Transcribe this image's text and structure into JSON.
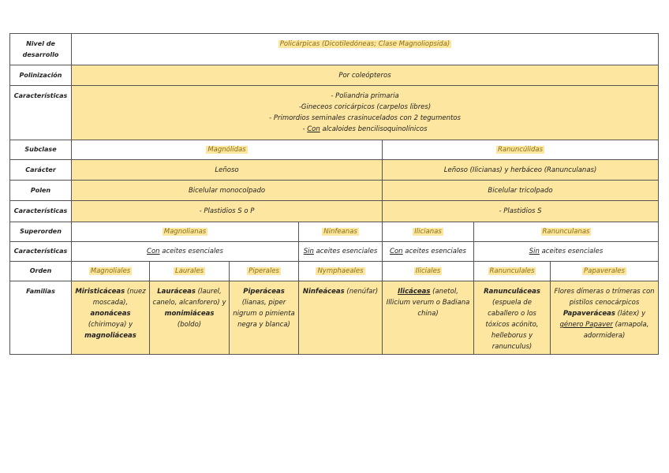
{
  "rows": {
    "nivel": {
      "label": "Nivel de desarrollo",
      "value": "Policárpicas (Dicotiledóneas; Clase Magnoliopsida)"
    },
    "polinizacion": {
      "label": "Polinización",
      "value": "Por coleópteros"
    },
    "caracteristicas1": {
      "label": "Características",
      "lines": [
        "- Poliandria primaria",
        "-Gineceos coricárpicos (carpelos libres)",
        "- Primordios seminales crasinucelados con 2 tegumentos"
      ],
      "last_prefix": "- ",
      "last_underlined": "Con",
      "last_rest": " alcaloides bencilisoquinolínicos"
    },
    "subclase": {
      "label": "Subclase",
      "values": [
        "Magnólidas",
        "Ranuncúlidas"
      ]
    },
    "caracter": {
      "label": "Carácter",
      "values": [
        "Leñoso",
        "Leñoso (Ilicianas) y herbáceo (Ranunculanas)"
      ]
    },
    "polen": {
      "label": "Polen",
      "values": [
        "Bicelular monocolpado",
        "Bicelular tricolpado"
      ]
    },
    "caracteristicas2": {
      "label": "Características",
      "values": [
        "- Plastidios S o P",
        "- Plastidios S"
      ]
    },
    "superorden": {
      "label": "Superorden",
      "values": [
        "Magnolianas",
        "Ninfeanas",
        "Ilicianas",
        "Ranunculanas"
      ]
    },
    "caracteristicas3": {
      "label": "Características",
      "values": [
        {
          "u": "Con",
          "rest": " aceites esenciales"
        },
        {
          "u": "Sin",
          "rest": " aceites esenciales"
        },
        {
          "u": "Con",
          "rest": " aceites esenciales"
        },
        {
          "u": "Sin",
          "rest": " aceites esenciales"
        }
      ]
    },
    "orden": {
      "label": "Orden",
      "values": [
        "Magnoliales",
        "Laurales",
        "Piperales",
        "Nymphaeales",
        "Iliciales",
        "Ranunculales",
        "Papaverales"
      ]
    },
    "familias": {
      "label": "Familias",
      "f1": {
        "b1": "Miristicáceas",
        "t1": " (nuez moscada), ",
        "b2": "anonáceas",
        "t2": " (chirimoya) y ",
        "b3": "magnoliáceas"
      },
      "f2": {
        "b1": "Lauráceas",
        "t1": " (laurel, canelo, alcanforero) y ",
        "b2": "monimiáceas",
        "t2": " (boldo)"
      },
      "f3": {
        "b1": "Piperáceas",
        "t1": " (lianas, piper nigrum o pimienta negra y blanca)"
      },
      "f4": {
        "b1": "Ninfeáceas",
        "t1": " (nenúfar)"
      },
      "f5": {
        "b1": "Ilicáceas",
        "t1": " (anetol, Illicium verum o Badiana china)"
      },
      "f6": {
        "b1": "Ranunculáceas",
        "t1": " (espuela de caballero o los tóxicos acónito, helleborus y ranunculus)"
      },
      "f7": {
        "t0": "Flores dímeras o trímeras con pistilos cenocárpicos ",
        "b1": "Papaveráceas",
        "t1": " (látex) y ",
        "u1": "género Papaver",
        "t2": " (amapola, adormidera)"
      }
    }
  },
  "colors": {
    "yellow": "#fde6a0",
    "border": "#555555"
  }
}
